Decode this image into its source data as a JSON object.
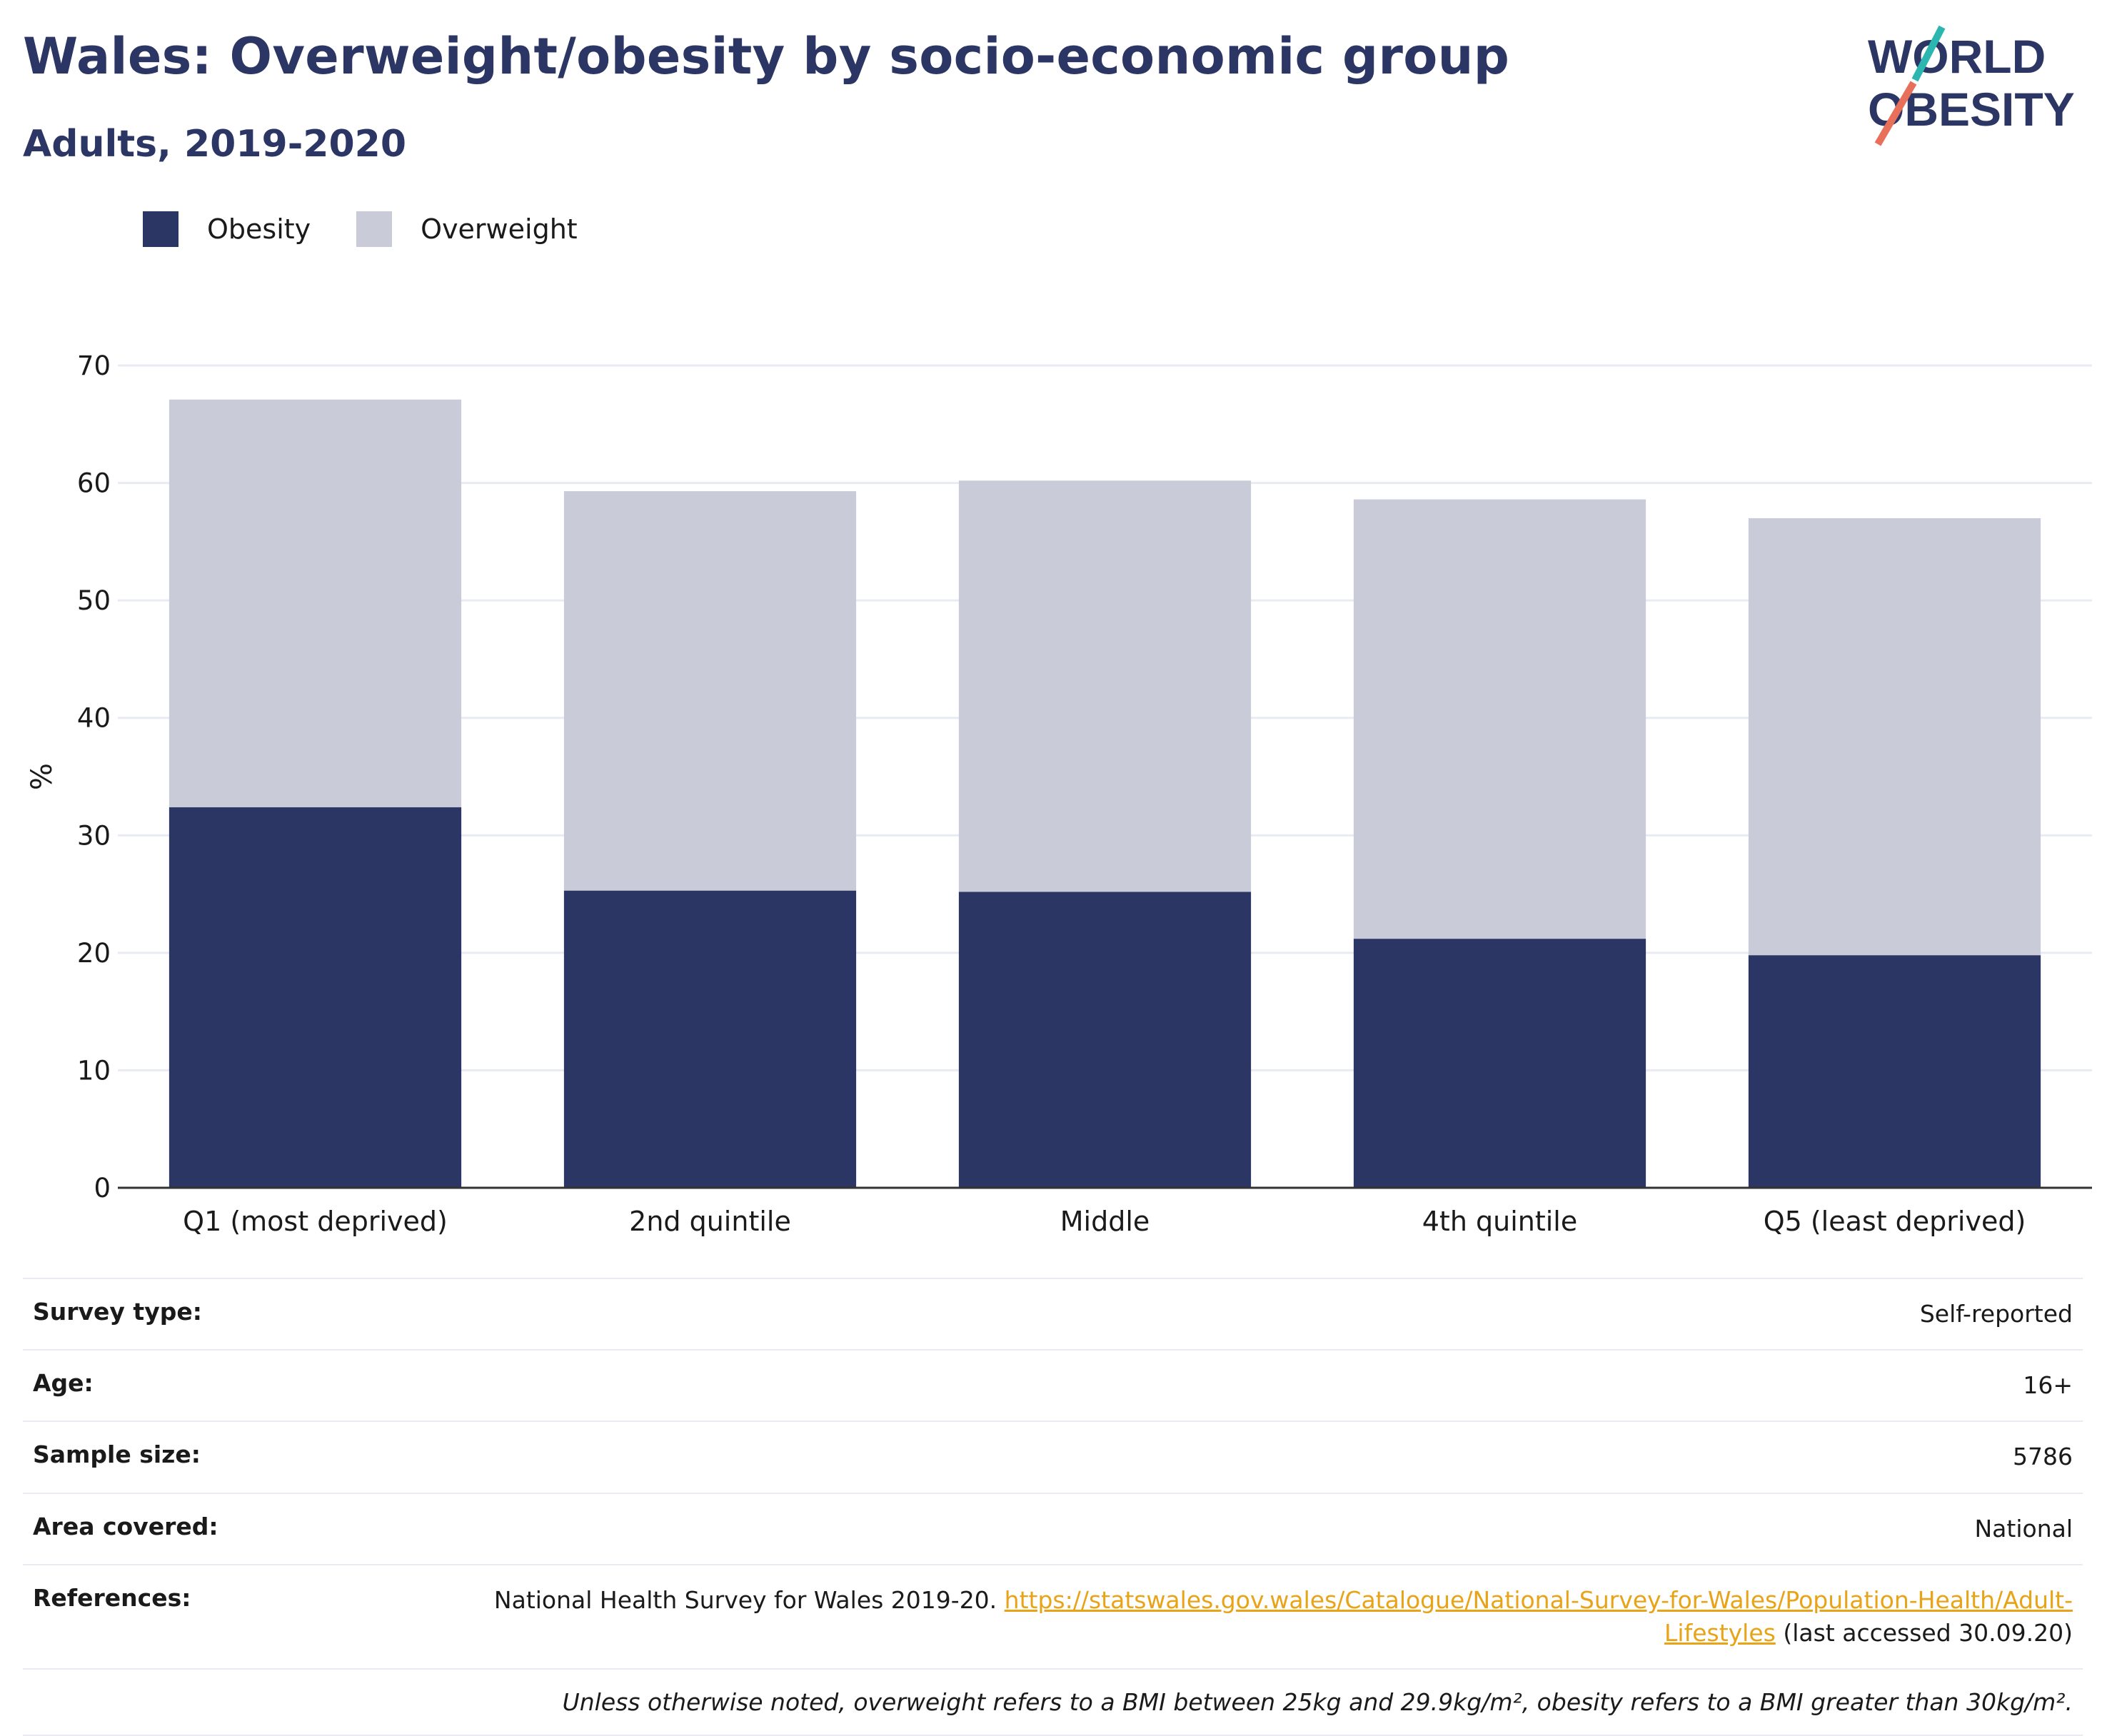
{
  "header": {
    "title": "Wales: Overweight/obesity by socio-economic group",
    "subtitle": "Adults, 2019-2020",
    "logo_line1": "WORLD",
    "logo_line2": "OBESITY"
  },
  "legend": {
    "obesity": "Obesity",
    "overweight": "Overweight"
  },
  "colors": {
    "obesity": "#2b3664",
    "overweight": "#c9ccd8",
    "grid": "#e8ebf3",
    "axis": "#333333",
    "link": "#e8a317"
  },
  "chart_data": {
    "type": "bar",
    "stacked": true,
    "categories": [
      "Q1 (most deprived)",
      "2nd quintile",
      "Middle",
      "4th quintile",
      "Q5 (least deprived)"
    ],
    "series": [
      {
        "name": "Obesity",
        "values": [
          32.4,
          25.3,
          25.2,
          21.2,
          19.8
        ]
      },
      {
        "name": "Overweight",
        "values": [
          34.7,
          34.0,
          35.0,
          37.4,
          37.2
        ]
      }
    ],
    "ylabel": "%",
    "ylim": [
      0,
      70
    ],
    "yticks": [
      0,
      10,
      20,
      30,
      40,
      50,
      60,
      70
    ],
    "grid": true,
    "legend_position": "top-left"
  },
  "meta": {
    "survey_type_label": "Survey type:",
    "survey_type_value": "Self-reported",
    "age_label": "Age:",
    "age_value": "16+",
    "sample_size_label": "Sample size:",
    "sample_size_value": "5786",
    "area_label": "Area covered:",
    "area_value": "National",
    "references_label": "References:",
    "references_text": "National Health Survey for Wales 2019-20.",
    "references_link": "https://statswales.gov.wales/Catalogue/National-Survey-for-Wales/Population-Health/Adult-Lifestyles",
    "references_accessed": "(last accessed 30.09.20)",
    "note": "Unless otherwise noted, overweight refers to a BMI between 25kg and 29.9kg/m², obesity refers to a BMI greater than 30kg/m²."
  }
}
